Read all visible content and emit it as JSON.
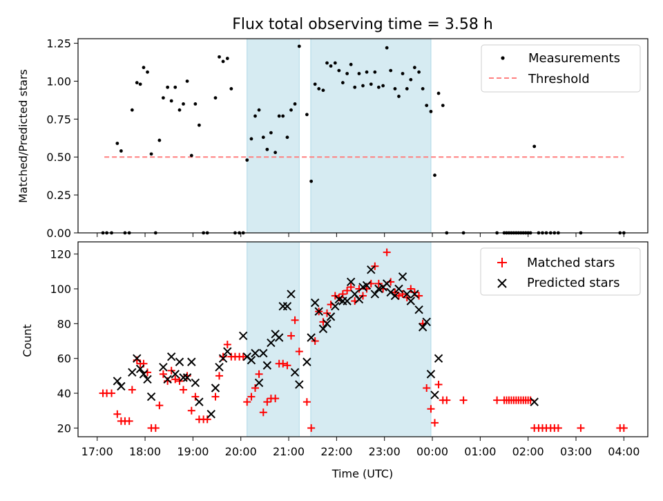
{
  "chart_data": [
    {
      "type": "scatter",
      "title": "Flux total observing time = 3.58 h",
      "ylabel": "Matched/Predicted stars",
      "ylim": [
        0,
        1.28
      ],
      "xlim": [
        16.6,
        28.5
      ],
      "x_axis_type": "time_utc_hours",
      "shaded_regions": [
        [
          20.13,
          21.22
        ],
        [
          21.46,
          23.97
        ]
      ],
      "series": [
        {
          "name": "Measurements",
          "color": "#000000",
          "marker": "dot",
          "x": [
            17.12,
            17.2,
            17.3,
            17.42,
            17.5,
            17.58,
            17.67,
            17.73,
            17.83,
            17.9,
            17.97,
            18.05,
            18.13,
            18.22,
            18.3,
            18.38,
            18.47,
            18.55,
            18.63,
            18.72,
            18.8,
            18.88,
            18.97,
            19.05,
            19.13,
            19.22,
            19.3,
            19.47,
            19.55,
            19.63,
            19.72,
            19.8,
            19.88,
            19.97,
            20.05,
            20.13,
            20.22,
            20.3,
            20.38,
            20.47,
            20.55,
            20.63,
            20.72,
            20.8,
            20.88,
            20.97,
            21.05,
            21.13,
            21.22,
            21.38,
            21.47,
            21.55,
            21.63,
            21.72,
            21.8,
            21.88,
            21.97,
            22.05,
            22.13,
            22.22,
            22.3,
            22.38,
            22.47,
            22.55,
            22.63,
            22.72,
            22.8,
            22.88,
            22.97,
            23.05,
            23.13,
            23.22,
            23.3,
            23.38,
            23.47,
            23.55,
            23.63,
            23.72,
            23.8,
            23.88,
            23.97,
            24.05,
            24.13,
            24.22,
            24.3,
            24.65,
            25.35,
            25.5,
            25.55,
            25.6,
            25.65,
            25.7,
            25.75,
            25.8,
            25.85,
            25.9,
            25.95,
            26.0,
            26.05,
            26.13,
            26.22,
            26.3,
            26.38,
            26.47,
            26.55,
            26.63,
            27.1,
            27.92,
            28.0
          ],
          "y": [
            0.0,
            0.0,
            0.0,
            0.59,
            0.54,
            0.0,
            0.0,
            0.81,
            0.99,
            0.98,
            1.09,
            1.06,
            0.52,
            0.0,
            0.61,
            0.89,
            0.96,
            0.87,
            0.96,
            0.81,
            0.85,
            1.0,
            0.51,
            0.85,
            0.71,
            0.0,
            0.0,
            0.89,
            1.16,
            1.13,
            1.15,
            0.95,
            0.0,
            0.0,
            0.0,
            0.48,
            0.62,
            0.77,
            0.81,
            0.63,
            0.55,
            0.66,
            0.53,
            0.77,
            0.77,
            0.63,
            0.81,
            0.85,
            1.23,
            0.78,
            0.34,
            0.98,
            0.95,
            0.94,
            1.12,
            1.1,
            1.12,
            1.07,
            0.99,
            1.05,
            1.11,
            0.96,
            1.05,
            0.97,
            1.06,
            0.98,
            1.06,
            0.96,
            0.97,
            1.22,
            1.07,
            0.95,
            0.9,
            1.05,
            0.95,
            1.01,
            1.09,
            1.06,
            0.95,
            0.84,
            0.8,
            0.38,
            0.92,
            0.84,
            0.0,
            0.0,
            0.0,
            0.0,
            0.0,
            0.0,
            0.0,
            0.0,
            0.0,
            0.0,
            0.0,
            0.0,
            0.0,
            0.0,
            0.0,
            0.57,
            0.0,
            0.0,
            0.0,
            0.0,
            0.0,
            0.0,
            0.0,
            0.0,
            0.0
          ]
        },
        {
          "name": "Threshold",
          "color": "#ff7f7f",
          "style": "dashed",
          "x": [
            17.15,
            28.0
          ],
          "y": [
            0.5,
            0.5
          ]
        }
      ],
      "legend": "top-right"
    },
    {
      "type": "scatter",
      "xlabel": "Time (UTC)",
      "ylabel": "Count",
      "ylim": [
        15,
        127
      ],
      "xlim": [
        16.6,
        28.5
      ],
      "x_axis_type": "time_utc_hours",
      "xticks": [
        "17:00",
        "18:00",
        "19:00",
        "20:00",
        "21:00",
        "22:00",
        "23:00",
        "00:00",
        "01:00",
        "02:00",
        "03:00",
        "04:00"
      ],
      "shaded_regions": [
        [
          20.13,
          21.22
        ],
        [
          21.46,
          23.97
        ]
      ],
      "series": [
        {
          "name": "Matched stars",
          "color": "#ff0000",
          "marker": "plus",
          "x": [
            17.12,
            17.2,
            17.3,
            17.42,
            17.5,
            17.58,
            17.67,
            17.73,
            17.83,
            17.9,
            17.97,
            18.05,
            18.13,
            18.22,
            18.3,
            18.38,
            18.47,
            18.55,
            18.63,
            18.72,
            18.8,
            18.88,
            18.97,
            19.05,
            19.13,
            19.22,
            19.3,
            19.47,
            19.55,
            19.63,
            19.72,
            19.8,
            19.88,
            19.97,
            20.05,
            20.13,
            20.22,
            20.3,
            20.38,
            20.47,
            20.55,
            20.63,
            20.72,
            20.8,
            20.88,
            20.97,
            21.05,
            21.13,
            21.22,
            21.38,
            21.47,
            21.55,
            21.63,
            21.72,
            21.8,
            21.88,
            21.97,
            22.05,
            22.13,
            22.22,
            22.3,
            22.38,
            22.47,
            22.55,
            22.63,
            22.72,
            22.8,
            22.88,
            22.97,
            23.05,
            23.13,
            23.22,
            23.3,
            23.38,
            23.47,
            23.55,
            23.63,
            23.72,
            23.8,
            23.88,
            23.97,
            24.05,
            24.13,
            24.22,
            24.3,
            24.65,
            25.35,
            25.5,
            25.55,
            25.6,
            25.65,
            25.7,
            25.75,
            25.8,
            25.85,
            25.9,
            25.95,
            26.0,
            26.05,
            26.13,
            26.22,
            26.3,
            26.38,
            26.47,
            26.55,
            26.63,
            27.1,
            27.92,
            28.0
          ],
          "y": [
            40,
            40,
            40,
            28,
            24,
            24,
            24,
            42,
            59,
            57,
            57,
            52,
            20,
            20,
            33,
            51,
            47,
            53,
            48,
            47,
            42,
            50,
            30,
            38,
            25,
            25,
            25,
            38,
            50,
            61,
            68,
            61,
            61,
            61,
            61,
            35,
            38,
            43,
            51,
            29,
            35,
            37,
            37,
            57,
            57,
            56,
            73,
            82,
            64,
            35,
            20,
            70,
            87,
            81,
            86,
            91,
            96,
            95,
            97,
            99,
            101,
            93,
            100,
            96,
            100,
            103,
            113,
            103,
            100,
            121,
            104,
            98,
            96,
            97,
            95,
            100,
            98,
            96,
            80,
            43,
            31,
            23,
            45,
            36,
            36,
            36,
            36,
            36,
            36,
            36,
            36,
            36,
            36,
            36,
            36,
            36,
            36,
            36,
            36,
            20,
            20,
            20,
            20,
            20,
            20,
            20,
            20,
            20,
            20
          ]
        },
        {
          "name": "Predicted stars",
          "color": "#000000",
          "marker": "x",
          "x": [
            17.42,
            17.5,
            17.73,
            17.83,
            17.9,
            17.97,
            18.05,
            18.13,
            18.38,
            18.47,
            18.55,
            18.63,
            18.72,
            18.8,
            18.88,
            18.97,
            19.05,
            19.13,
            19.38,
            19.47,
            19.55,
            19.63,
            19.72,
            20.05,
            20.13,
            20.22,
            20.3,
            20.38,
            20.47,
            20.55,
            20.63,
            20.72,
            20.8,
            20.88,
            20.97,
            21.05,
            21.13,
            21.22,
            21.38,
            21.47,
            21.55,
            21.63,
            21.72,
            21.8,
            21.88,
            21.97,
            22.05,
            22.13,
            22.22,
            22.3,
            22.38,
            22.47,
            22.55,
            22.63,
            22.72,
            22.8,
            22.88,
            22.97,
            23.05,
            23.13,
            23.22,
            23.3,
            23.38,
            23.47,
            23.55,
            23.63,
            23.72,
            23.8,
            23.88,
            23.97,
            24.05,
            24.13,
            26.13
          ],
          "y": [
            47,
            44,
            52,
            60,
            54,
            51,
            48,
            38,
            55,
            48,
            61,
            51,
            58,
            49,
            49,
            58,
            46,
            35,
            28,
            43,
            55,
            60,
            64,
            73,
            61,
            59,
            63,
            46,
            63,
            56,
            69,
            74,
            72,
            90,
            90,
            97,
            52,
            45,
            58,
            72,
            92,
            87,
            77,
            80,
            84,
            90,
            94,
            93,
            93,
            104,
            97,
            94,
            101,
            102,
            111,
            97,
            100,
            101,
            103,
            98,
            96,
            100,
            107,
            97,
            93,
            97,
            88,
            78,
            81,
            51,
            39,
            60,
            35
          ]
        }
      ],
      "legend": "top-right"
    }
  ]
}
